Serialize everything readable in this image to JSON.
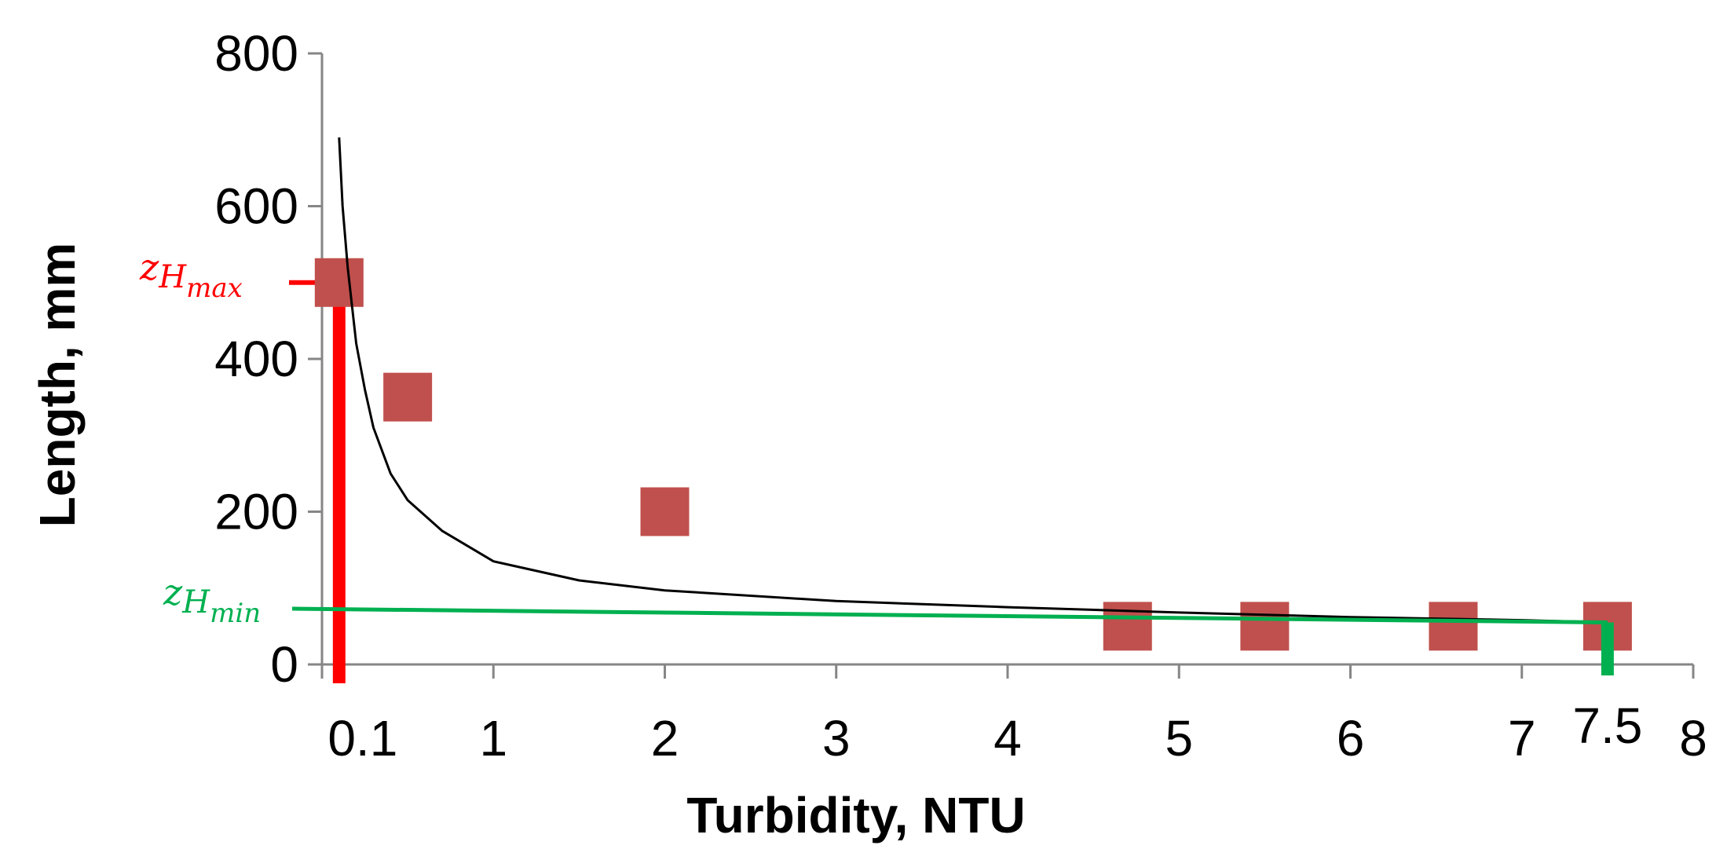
{
  "chart_data": {
    "type": "scatter",
    "xlabel": "Turbidity, NTU",
    "ylabel": "Length, mm",
    "xlim": [
      0,
      8
    ],
    "ylim": [
      0,
      800
    ],
    "y_ticks": [
      0,
      200,
      400,
      600,
      800
    ],
    "x_ticks": [
      1,
      2,
      3,
      4,
      5,
      6,
      7,
      8
    ],
    "x_tick_labels": [
      "1",
      "2",
      "3",
      "4",
      "5",
      "6",
      "7",
      "8"
    ],
    "extra_x_labels": [
      {
        "value": 0.1,
        "label": "0.1"
      },
      {
        "value": 7.5,
        "label": "7.5"
      }
    ],
    "series": [
      {
        "marker": "square",
        "color": "#C0504D",
        "x": [
          0.1,
          0.5,
          2.0,
          4.7,
          5.5,
          6.6,
          7.5
        ],
        "y": [
          500,
          350,
          200,
          50,
          50,
          50,
          50
        ]
      }
    ],
    "fit_curve": {
      "color": "#000000",
      "x": [
        0.1,
        0.12,
        0.15,
        0.2,
        0.25,
        0.3,
        0.4,
        0.5,
        0.7,
        1.0,
        1.5,
        2.0,
        3.0,
        4.0,
        5.0,
        6.0,
        7.0,
        7.5
      ],
      "y": [
        690,
        600,
        520,
        420,
        360,
        310,
        250,
        215,
        175,
        135,
        110,
        97,
        83,
        75,
        68,
        62,
        58,
        55
      ]
    },
    "annotations": {
      "zh_max": {
        "label_base": "Z",
        "label_sub1": "H",
        "label_sub2": "max",
        "x": 0.1,
        "y": 500,
        "color": "#FF0000"
      },
      "zh_min": {
        "label_base": "Z",
        "label_sub1": "H",
        "label_sub2": "min",
        "x": 7.5,
        "y_start": 73,
        "y_end": 55,
        "color": "#00B050"
      }
    },
    "grid": false,
    "legend": "none"
  }
}
